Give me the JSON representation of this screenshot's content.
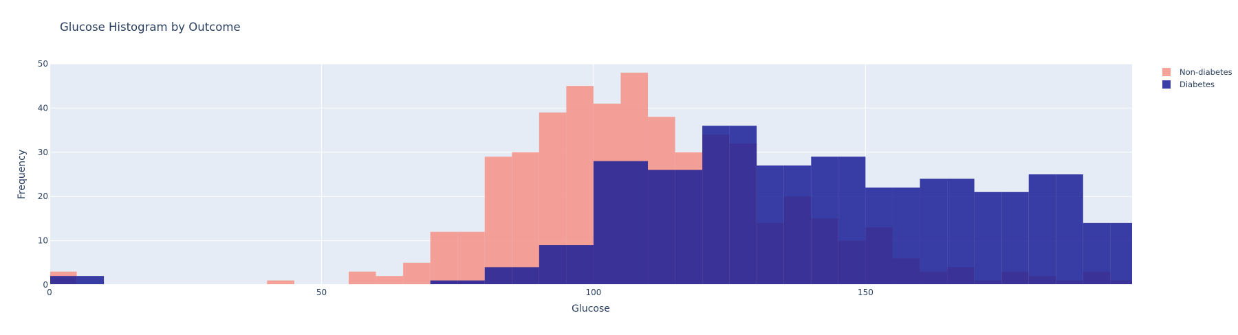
{
  "chart_data": {
    "type": "histogram",
    "title": "Glucose Histogram by Outcome",
    "xlabel": "Glucose",
    "ylabel": "Frequency",
    "xlim": [
      0,
      199
    ],
    "ylim": [
      0,
      50
    ],
    "bin_size": 5,
    "x_ticks": [
      0,
      50,
      100,
      150
    ],
    "y_ticks": [
      0,
      10,
      20,
      30,
      40,
      50
    ],
    "grid": true,
    "barmode": "overlay",
    "legend_position": "top-right",
    "plot_background": "#E5ECF6",
    "series": [
      {
        "name": "Non-diabetes",
        "color": "#F4978E",
        "bins": [
          {
            "x0": 0,
            "x1": 5,
            "count": 3
          },
          {
            "x0": 40,
            "x1": 45,
            "count": 1
          },
          {
            "x0": 55,
            "x1": 60,
            "count": 3
          },
          {
            "x0": 60,
            "x1": 65,
            "count": 2
          },
          {
            "x0": 65,
            "x1": 70,
            "count": 5
          },
          {
            "x0": 70,
            "x1": 75,
            "count": 12
          },
          {
            "x0": 75,
            "x1": 80,
            "count": 12
          },
          {
            "x0": 80,
            "x1": 85,
            "count": 29
          },
          {
            "x0": 85,
            "x1": 90,
            "count": 30
          },
          {
            "x0": 90,
            "x1": 95,
            "count": 39
          },
          {
            "x0": 95,
            "x1": 100,
            "count": 45
          },
          {
            "x0": 100,
            "x1": 105,
            "count": 41
          },
          {
            "x0": 105,
            "x1": 110,
            "count": 48
          },
          {
            "x0": 110,
            "x1": 115,
            "count": 38
          },
          {
            "x0": 115,
            "x1": 120,
            "count": 30
          },
          {
            "x0": 120,
            "x1": 125,
            "count": 34
          },
          {
            "x0": 125,
            "x1": 130,
            "count": 32
          },
          {
            "x0": 130,
            "x1": 135,
            "count": 14
          },
          {
            "x0": 135,
            "x1": 140,
            "count": 20
          },
          {
            "x0": 140,
            "x1": 145,
            "count": 15
          },
          {
            "x0": 145,
            "x1": 150,
            "count": 10
          },
          {
            "x0": 150,
            "x1": 155,
            "count": 13
          },
          {
            "x0": 155,
            "x1": 160,
            "count": 6
          },
          {
            "x0": 160,
            "x1": 165,
            "count": 3
          },
          {
            "x0": 165,
            "x1": 170,
            "count": 4
          },
          {
            "x0": 170,
            "x1": 175,
            "count": 1
          },
          {
            "x0": 175,
            "x1": 180,
            "count": 3
          },
          {
            "x0": 180,
            "x1": 185,
            "count": 2
          },
          {
            "x0": 185,
            "x1": 190,
            "count": 1
          },
          {
            "x0": 190,
            "x1": 195,
            "count": 3
          },
          {
            "x0": 195,
            "x1": 200,
            "count": 1
          }
        ]
      },
      {
        "name": "Diabetes",
        "color": "#1A1F96",
        "bins": [
          {
            "x0": 0,
            "x1": 5,
            "count": 2
          },
          {
            "x0": 5,
            "x1": 10,
            "count": 2
          },
          {
            "x0": 70,
            "x1": 75,
            "count": 1
          },
          {
            "x0": 75,
            "x1": 80,
            "count": 1
          },
          {
            "x0": 80,
            "x1": 85,
            "count": 4
          },
          {
            "x0": 85,
            "x1": 90,
            "count": 4
          },
          {
            "x0": 90,
            "x1": 95,
            "count": 9
          },
          {
            "x0": 95,
            "x1": 100,
            "count": 9
          },
          {
            "x0": 100,
            "x1": 105,
            "count": 28
          },
          {
            "x0": 105,
            "x1": 110,
            "count": 28
          },
          {
            "x0": 110,
            "x1": 115,
            "count": 26
          },
          {
            "x0": 115,
            "x1": 120,
            "count": 26
          },
          {
            "x0": 120,
            "x1": 125,
            "count": 36
          },
          {
            "x0": 125,
            "x1": 130,
            "count": 36
          },
          {
            "x0": 130,
            "x1": 135,
            "count": 27
          },
          {
            "x0": 135,
            "x1": 140,
            "count": 27
          },
          {
            "x0": 140,
            "x1": 145,
            "count": 29
          },
          {
            "x0": 145,
            "x1": 150,
            "count": 29
          },
          {
            "x0": 150,
            "x1": 155,
            "count": 22
          },
          {
            "x0": 155,
            "x1": 160,
            "count": 22
          },
          {
            "x0": 160,
            "x1": 165,
            "count": 24
          },
          {
            "x0": 165,
            "x1": 170,
            "count": 24
          },
          {
            "x0": 170,
            "x1": 175,
            "count": 21
          },
          {
            "x0": 175,
            "x1": 180,
            "count": 21
          },
          {
            "x0": 180,
            "x1": 185,
            "count": 25
          },
          {
            "x0": 185,
            "x1": 190,
            "count": 25
          },
          {
            "x0": 190,
            "x1": 195,
            "count": 14
          },
          {
            "x0": 195,
            "x1": 200,
            "count": 14
          }
        ]
      }
    ]
  }
}
